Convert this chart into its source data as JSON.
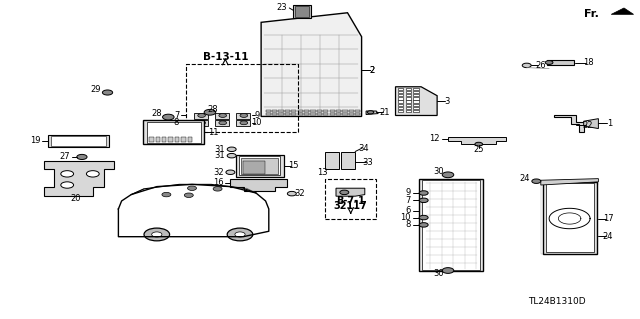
{
  "bg_color": "#ffffff",
  "fig_width": 6.4,
  "fig_height": 3.19,
  "dpi": 100,
  "diagram_code": "TL24B1310D",
  "fr_label": "Fr."
}
